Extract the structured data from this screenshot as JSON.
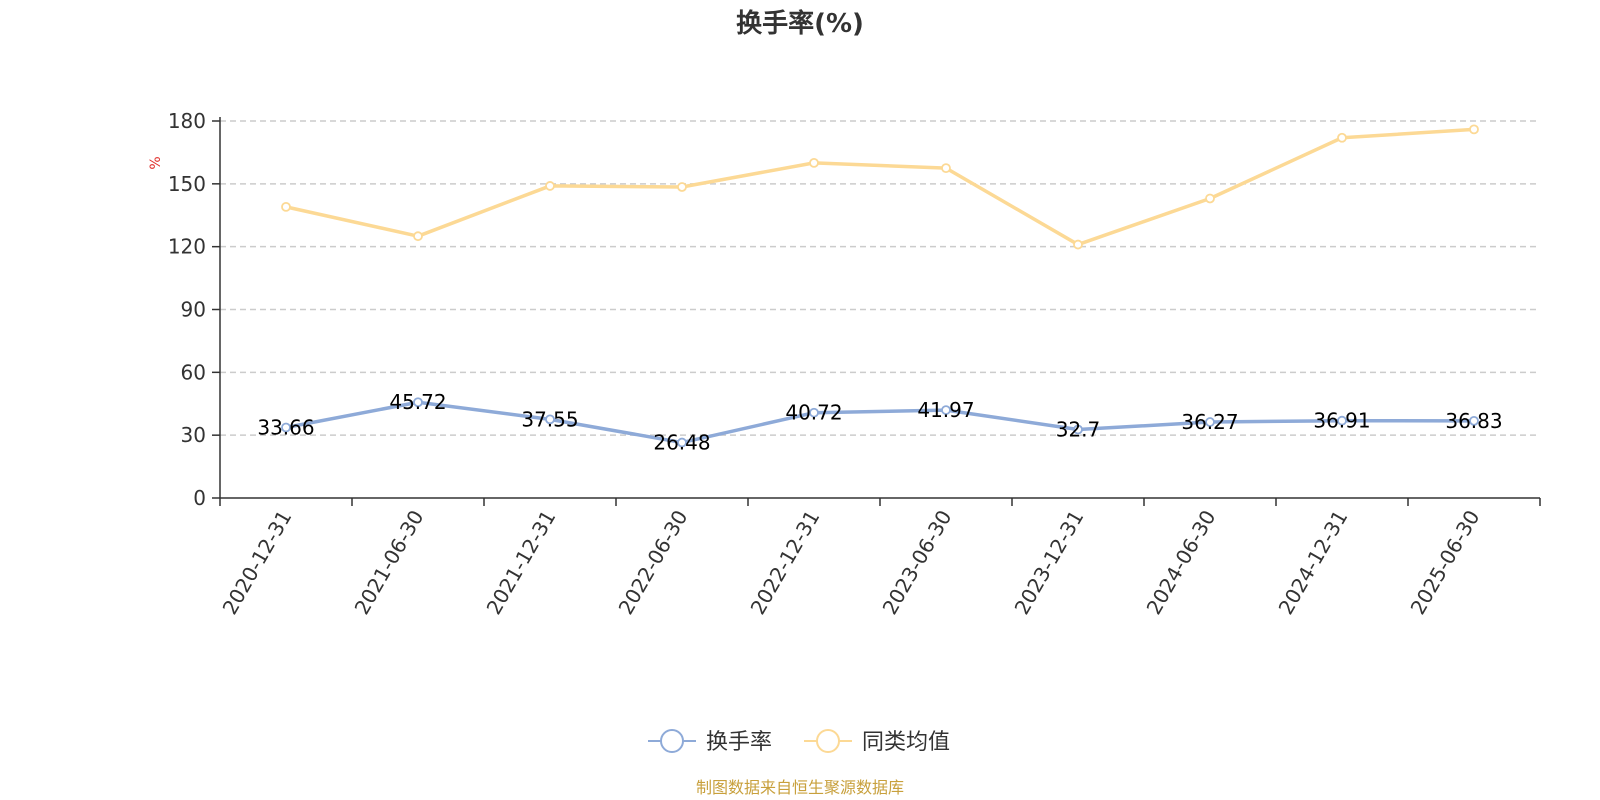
{
  "chart_data": {
    "type": "line",
    "title": "换手率(%)",
    "ylabel": "%",
    "ylim": [
      0,
      180
    ],
    "yticks": [
      0,
      30,
      60,
      90,
      120,
      150,
      180
    ],
    "grid": true,
    "legend_position": "bottom-center",
    "categories": [
      "2020-12-31",
      "2021-06-30",
      "2021-12-31",
      "2022-06-30",
      "2022-12-31",
      "2023-06-30",
      "2023-12-31",
      "2024-06-30",
      "2024-12-31",
      "2025-06-30"
    ],
    "series": [
      {
        "name": "换手率",
        "color": "#8eaad8",
        "values": [
          33.66,
          45.72,
          37.55,
          26.48,
          40.72,
          41.97,
          32.7,
          36.27,
          36.91,
          36.83
        ],
        "data_labels": [
          "33.66",
          "45.72",
          "37.55",
          "26.48",
          "40.72",
          "41.97",
          "32.7",
          "36.27",
          "36.91",
          "36.83"
        ]
      },
      {
        "name": "同类均值",
        "color": "#fcd995",
        "values": [
          139,
          125,
          149,
          148.5,
          160,
          157.5,
          121,
          143,
          172,
          176
        ]
      }
    ]
  },
  "source_note": "制图数据来自恒生聚源数据库",
  "colors": {
    "axis": "#333333",
    "grid": "#cccccc",
    "unit": "#e0302c",
    "source": "#c8a03c"
  }
}
